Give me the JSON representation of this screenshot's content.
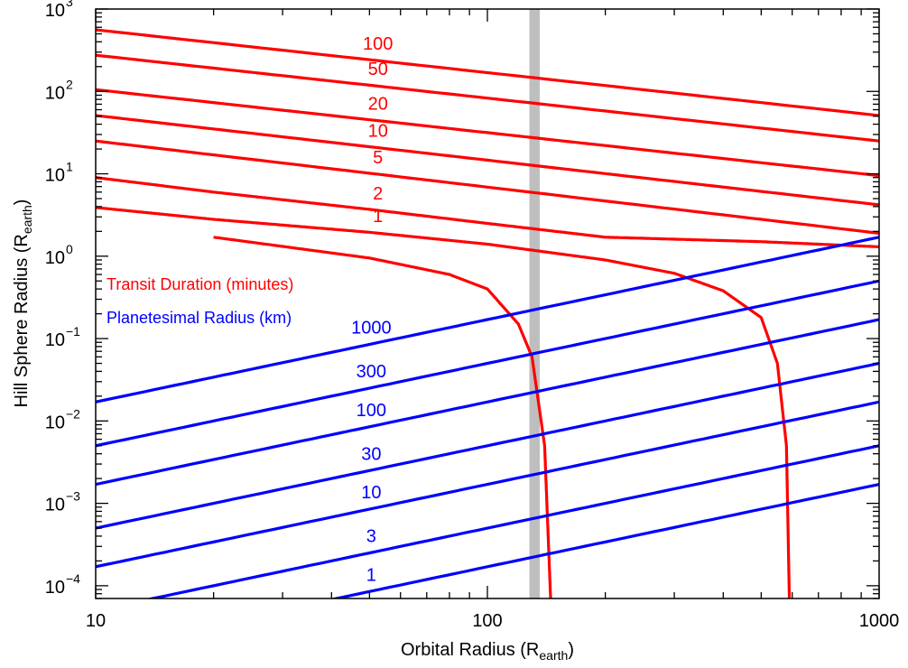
{
  "chart_data": {
    "type": "line",
    "xlabel": "Orbital Radius (R",
    "xlabel_sub": "earth",
    "ylabel": "Hill Sphere Radius (R",
    "ylabel_sub": "earth",
    "x_scale": "log",
    "y_scale": "log",
    "xlim": [
      10,
      1000
    ],
    "ylim": [
      7e-05,
      1000
    ],
    "x_ticks": [
      {
        "value": 10,
        "label": "10"
      },
      {
        "value": 100,
        "label": "100"
      },
      {
        "value": 1000,
        "label": "1000"
      }
    ],
    "y_ticks": [
      {
        "value": 1000,
        "base": "10",
        "exp": "3"
      },
      {
        "value": 100,
        "base": "10",
        "exp": "2"
      },
      {
        "value": 10,
        "base": "10",
        "exp": "1"
      },
      {
        "value": 1,
        "base": "10",
        "exp": "0"
      },
      {
        "value": 0.1,
        "base": "10",
        "exp": "−1"
      },
      {
        "value": 0.01,
        "base": "10",
        "exp": "−2"
      },
      {
        "value": 0.001,
        "base": "10",
        "exp": "−3"
      },
      {
        "value": 0.0001,
        "base": "10",
        "exp": "−4"
      }
    ],
    "vertical_band": {
      "x_min": 128,
      "x_max": 136,
      "color": "#bebebe"
    },
    "legend": [
      {
        "text": "Transit Duration (minutes)",
        "color": "#ff0000"
      },
      {
        "text": "Planetesimal Radius (km)",
        "color": "#0000ff"
      }
    ],
    "transit_duration_series": [
      {
        "name": "100",
        "label_x": 52,
        "color": "#ff0000",
        "points": [
          [
            10,
            560
          ],
          [
            1000,
            51
          ]
        ]
      },
      {
        "name": "50",
        "label_x": 52,
        "color": "#ff0000",
        "points": [
          [
            10,
            275
          ],
          [
            1000,
            25
          ]
        ]
      },
      {
        "name": "20",
        "label_x": 52,
        "color": "#ff0000",
        "points": [
          [
            10,
            105
          ],
          [
            1000,
            9.5
          ]
        ]
      },
      {
        "name": "10",
        "label_x": 52,
        "color": "#ff0000",
        "points": [
          [
            10,
            51
          ],
          [
            1000,
            4.2
          ]
        ]
      },
      {
        "name": "5",
        "label_x": 52,
        "color": "#ff0000",
        "points": [
          [
            10,
            25
          ],
          [
            1000,
            1.9
          ]
        ]
      },
      {
        "name": "2",
        "label_x": 52,
        "color": "#ff0000",
        "points": [
          [
            10,
            9
          ],
          [
            20,
            6
          ],
          [
            50,
            3.7
          ],
          [
            100,
            2.5
          ],
          [
            200,
            1.7
          ],
          [
            500,
            1.5
          ],
          [
            1000,
            1.3
          ]
        ]
      },
      {
        "name": "1",
        "label_x": 52,
        "color": "#ff0000",
        "points": [
          [
            10,
            3.9
          ],
          [
            20,
            2.8
          ],
          [
            50,
            1.95
          ],
          [
            100,
            1.4
          ],
          [
            200,
            0.9
          ],
          [
            300,
            0.62
          ],
          [
            400,
            0.38
          ],
          [
            500,
            0.18
          ],
          [
            550,
            0.05
          ],
          [
            580,
            0.005
          ],
          [
            590,
            7e-05
          ]
        ]
      },
      {
        "name": "",
        "label_x": 0,
        "color": "#ff0000",
        "points": [
          [
            20,
            1.7
          ],
          [
            50,
            0.95
          ],
          [
            80,
            0.6
          ],
          [
            100,
            0.4
          ],
          [
            120,
            0.15
          ],
          [
            130,
            0.06
          ],
          [
            140,
            0.005
          ],
          [
            145,
            7e-05
          ]
        ]
      }
    ],
    "planetesimal_radius_series": [
      {
        "name": "1000",
        "label_x": 50,
        "color": "#0000ff",
        "points": [
          [
            10,
            0.017
          ],
          [
            1000,
            1.7
          ]
        ]
      },
      {
        "name": "300",
        "label_x": 50,
        "color": "#0000ff",
        "points": [
          [
            10,
            0.005
          ],
          [
            1000,
            0.5
          ]
        ]
      },
      {
        "name": "100",
        "label_x": 50,
        "color": "#0000ff",
        "points": [
          [
            10,
            0.0017
          ],
          [
            1000,
            0.17
          ]
        ]
      },
      {
        "name": "30",
        "label_x": 50,
        "color": "#0000ff",
        "points": [
          [
            10,
            0.0005
          ],
          [
            1000,
            0.05
          ]
        ]
      },
      {
        "name": "10",
        "label_x": 50,
        "color": "#0000ff",
        "points": [
          [
            10,
            0.00017
          ],
          [
            1000,
            0.017
          ]
        ]
      },
      {
        "name": "3",
        "label_x": 50,
        "color": "#0000ff",
        "points": [
          [
            10,
            5e-05
          ],
          [
            1000,
            0.005
          ]
        ]
      },
      {
        "name": "1",
        "label_x": 50,
        "color": "#0000ff",
        "points": [
          [
            10,
            1.7e-05
          ],
          [
            1000,
            0.0017
          ]
        ]
      }
    ]
  }
}
